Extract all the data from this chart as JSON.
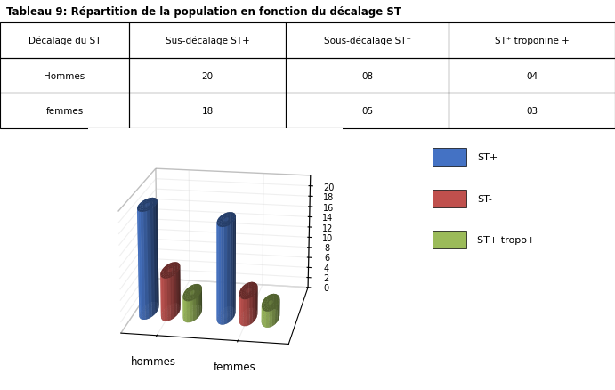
{
  "title": "Tableau 9: Répartition de la population en fonction du décalage ST",
  "table_headers": [
    "Décalage du ST",
    "Sus-décalage ST+",
    "Sous-décalage ST⁻",
    "ST⁺ troponine +"
  ],
  "table_rows": [
    [
      "Hommes",
      "20",
      "08",
      "04"
    ],
    [
      "femmes",
      "18",
      "05",
      "03"
    ]
  ],
  "categories": [
    "hommes",
    "femmes"
  ],
  "series_names": [
    "ST+",
    "ST-",
    "ST+ tropo+"
  ],
  "series": {
    "ST+": [
      20,
      18
    ],
    "ST-": [
      8,
      5
    ],
    "ST+ tropo+": [
      4,
      3
    ]
  },
  "colors": {
    "ST+": "#4472C4",
    "ST-": "#C0504D",
    "ST+ tropo+": "#9BBB59"
  },
  "ylim": [
    0,
    22
  ],
  "yticks": [
    0,
    2,
    4,
    6,
    8,
    10,
    12,
    14,
    16,
    18,
    20
  ],
  "background_color": "#FFFFFF"
}
